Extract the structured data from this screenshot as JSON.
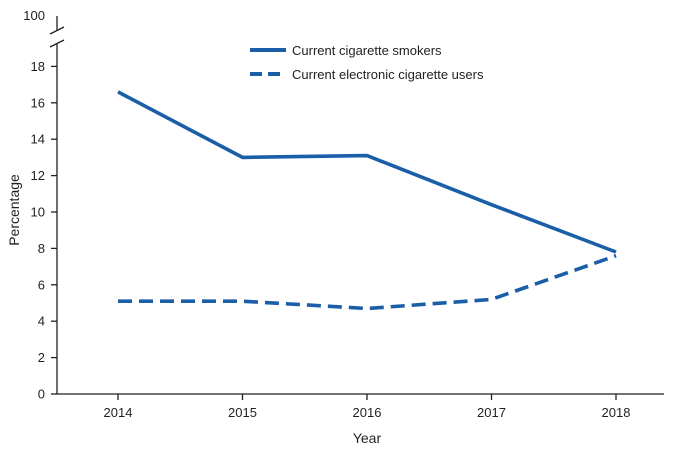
{
  "chart_data": {
    "type": "line",
    "title": "",
    "xlabel": "Year",
    "ylabel": "Percentage",
    "x": [
      "2014",
      "2015",
      "2016",
      "2017",
      "2018"
    ],
    "y_ticks": [
      0,
      2,
      4,
      6,
      8,
      10,
      12,
      14,
      16,
      18
    ],
    "y_break_top_label": "100",
    "ylim": [
      0,
      20
    ],
    "axis_break": {
      "from": 20,
      "to": 100
    },
    "legend_position": "top-center",
    "series": [
      {
        "name": "Current cigarette smokers",
        "style": "solid",
        "color": "#1b5ea8",
        "values": [
          16.6,
          13.0,
          13.1,
          10.4,
          7.8
        ]
      },
      {
        "name": "Current electronic cigarette users",
        "style": "dashed",
        "color": "#1b5ea8",
        "values": [
          5.1,
          5.1,
          4.7,
          5.2,
          7.6
        ]
      }
    ]
  }
}
